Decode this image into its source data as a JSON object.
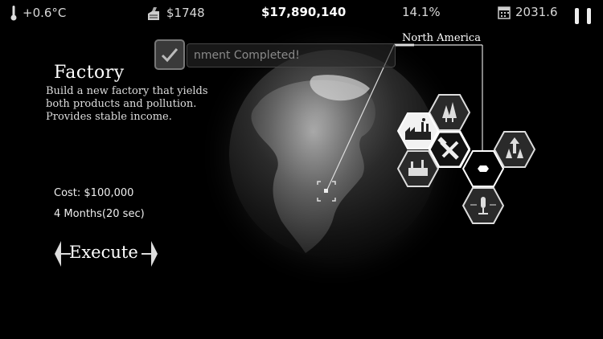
{
  "hud": {
    "temperature": "+0.6°C",
    "income": "$1748",
    "money": "$17,890,140",
    "percent": "14.1%",
    "year": "2031.6",
    "icons": {
      "temperature": "thermometer-icon",
      "income": "money-bag-icon",
      "year": "calendar-icon",
      "pause": "pause-icon"
    }
  },
  "toast": {
    "text": "nment Completed!",
    "icon": "checkmark-icon"
  },
  "action": {
    "title": "Factory",
    "description": [
      "Build a new factory that yields",
      "both products and pollution.",
      "Provides stable income."
    ],
    "cost": "Cost: $100,000",
    "duration": "4 Months(20 sec)",
    "execute_label": "Execute"
  },
  "region": {
    "name": "North America"
  },
  "hex_menu": [
    {
      "name": "forest-icon",
      "selected": false
    },
    {
      "name": "factory-icon",
      "selected": true
    },
    {
      "name": "tools-icon",
      "selected": false
    },
    {
      "name": "industry-build-icon",
      "selected": false
    },
    {
      "name": "center-node-icon",
      "selected": false
    },
    {
      "name": "upgrade-forest-icon",
      "selected": false
    },
    {
      "name": "mic-icon",
      "selected": false
    }
  ],
  "colors": {
    "background": "#000000",
    "text": "#ffffff",
    "hex_fill": "#e8e8e8",
    "hex_selected": "#ffffff"
  }
}
